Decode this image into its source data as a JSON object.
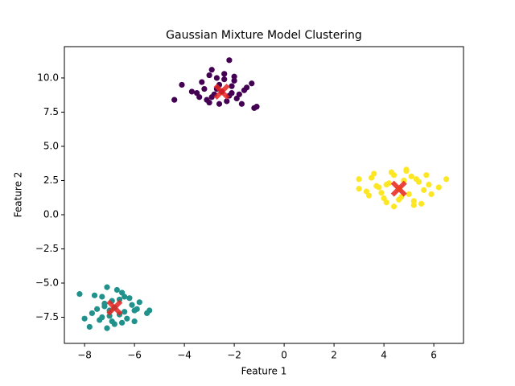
{
  "chart_data": {
    "type": "scatter",
    "title": "Gaussian Mixture Model Clustering",
    "xlabel": "Feature 1",
    "ylabel": "Feature 2",
    "xlim": [
      -8.81,
      7.19
    ],
    "ylim": [
      -9.41,
      12.29
    ],
    "xticks": [
      {
        "value": -8,
        "label": "−8"
      },
      {
        "value": -6,
        "label": "−6"
      },
      {
        "value": -4,
        "label": "−4"
      },
      {
        "value": -2,
        "label": "−2"
      },
      0,
      2,
      4,
      6
    ],
    "yticks": [
      {
        "value": -7.5,
        "label": "−7.5"
      },
      {
        "value": -5,
        "label": "−5.0"
      },
      {
        "value": -2.5,
        "label": "−2.5"
      },
      {
        "value": 0,
        "label": "0.0"
      },
      {
        "value": 2.5,
        "label": "2.5"
      },
      {
        "value": 5,
        "label": "5.0"
      },
      {
        "value": 7.5,
        "label": "7.5"
      },
      {
        "value": 10,
        "label": "10.0"
      }
    ],
    "grid": false,
    "series": [
      {
        "color": "#440154",
        "marker": "o",
        "x": [
          -2.5,
          -2.1,
          -2.9,
          -3.2,
          -1.8,
          -2.7,
          -2.3,
          -3.5,
          -1.5,
          -2.0,
          -3.0,
          -2.6,
          -1.9,
          -3.3,
          -2.4,
          -2.8,
          -1.6,
          -3.7,
          -2.2,
          -2.9,
          -1.3,
          -3.1,
          -2.0,
          -2.6,
          -4.4,
          -2.2,
          -1.1,
          -1.2,
          -4.1,
          -2.7,
          -3.4,
          -1.7,
          -2.4,
          -3.0,
          -2.1
        ],
        "y": [
          9.0,
          9.4,
          8.6,
          9.2,
          8.8,
          10.0,
          8.3,
          8.9,
          9.3,
          9.8,
          8.2,
          9.5,
          8.5,
          9.7,
          10.3,
          8.8,
          9.1,
          9.0,
          8.7,
          10.6,
          9.6,
          8.4,
          10.1,
          8.1,
          8.4,
          11.3,
          7.9,
          7.8,
          9.5,
          9.2,
          8.6,
          8.1,
          9.9,
          10.2,
          8.9
        ]
      },
      {
        "color": "#21918c",
        "marker": "o",
        "x": [
          -6.8,
          -7.2,
          -6.4,
          -7.0,
          -6.6,
          -7.5,
          -6.1,
          -6.9,
          -7.3,
          -6.3,
          -7.7,
          -6.0,
          -6.7,
          -7.1,
          -6.5,
          -7.4,
          -5.8,
          -6.2,
          -7.0,
          -6.8,
          -8.2,
          -5.4,
          -7.8,
          -7.1,
          -5.5,
          -7.6,
          -6.5,
          -6.9,
          -7.3,
          -6.0,
          -7.2,
          -6.4,
          -8.0,
          -5.9,
          -6.6
        ],
        "y": [
          -6.8,
          -6.5,
          -7.1,
          -7.4,
          -6.2,
          -6.9,
          -6.6,
          -7.8,
          -6.0,
          -7.6,
          -7.2,
          -7.0,
          -5.5,
          -5.3,
          -7.9,
          -7.7,
          -6.4,
          -6.1,
          -7.0,
          -8.0,
          -5.8,
          -7.0,
          -8.2,
          -8.3,
          -7.2,
          -5.9,
          -5.7,
          -6.3,
          -7.5,
          -7.8,
          -6.7,
          -6.0,
          -7.6,
          -6.9,
          -7.3
        ]
      },
      {
        "color": "#fde725",
        "marker": "o",
        "x": [
          4.6,
          4.2,
          5.0,
          3.8,
          5.4,
          4.9,
          4.0,
          5.6,
          3.5,
          4.4,
          5.2,
          3.9,
          5.8,
          4.7,
          3.3,
          4.1,
          5.1,
          3.6,
          4.8,
          5.5,
          3.0,
          3.0,
          6.5,
          6.2,
          4.4,
          5.2,
          4.3,
          5.9,
          3.7,
          4.6,
          5.3,
          3.4,
          4.9,
          5.7,
          4.1
        ],
        "y": [
          1.9,
          2.3,
          1.5,
          2.0,
          2.4,
          3.2,
          1.2,
          1.8,
          2.7,
          2.9,
          1.0,
          1.6,
          2.2,
          1.3,
          1.7,
          0.9,
          2.8,
          3.0,
          2.5,
          0.8,
          2.6,
          1.9,
          2.6,
          2.0,
          0.6,
          0.7,
          3.1,
          1.5,
          2.1,
          1.1,
          2.6,
          1.4,
          3.3,
          2.9,
          2.2
        ]
      },
      {
        "color": "#e8231e",
        "marker": "X",
        "x": [
          -2.5,
          -6.8,
          4.6
        ],
        "y": [
          9.0,
          -6.8,
          1.9
        ]
      }
    ]
  }
}
